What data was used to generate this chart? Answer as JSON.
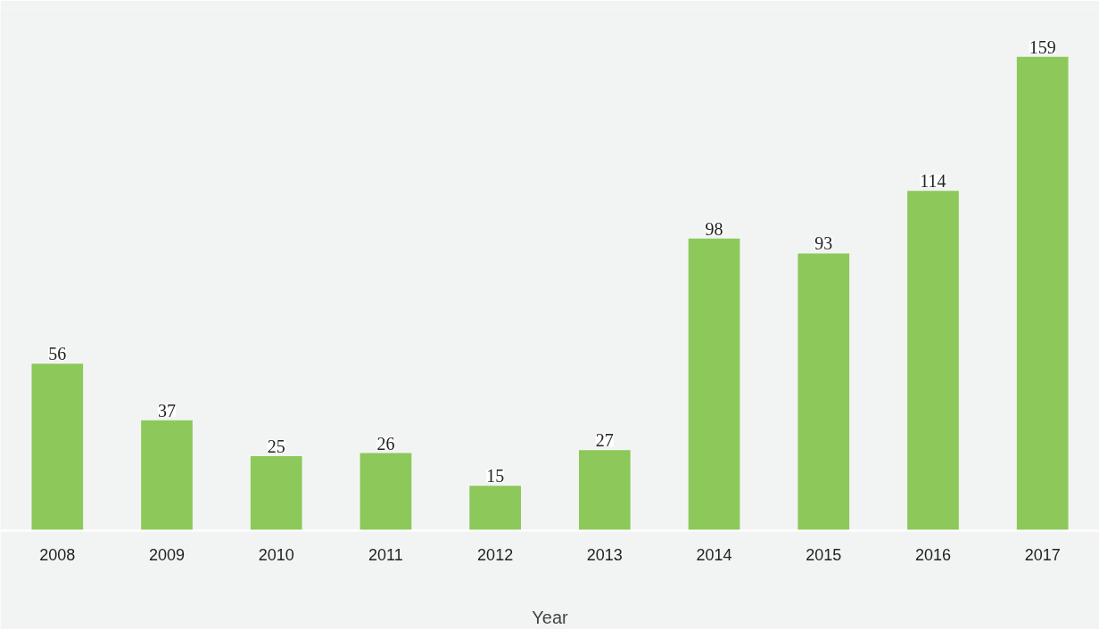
{
  "chart_data": {
    "type": "bar",
    "xlabel": "Year",
    "categories": [
      "2008",
      "2009",
      "2010",
      "2011",
      "2012",
      "2013",
      "2014",
      "2015",
      "2016",
      "2017"
    ],
    "values": [
      56,
      37,
      25,
      26,
      15,
      27,
      98,
      93,
      114,
      159
    ],
    "color": "#8cc85a",
    "data_labels": true
  }
}
